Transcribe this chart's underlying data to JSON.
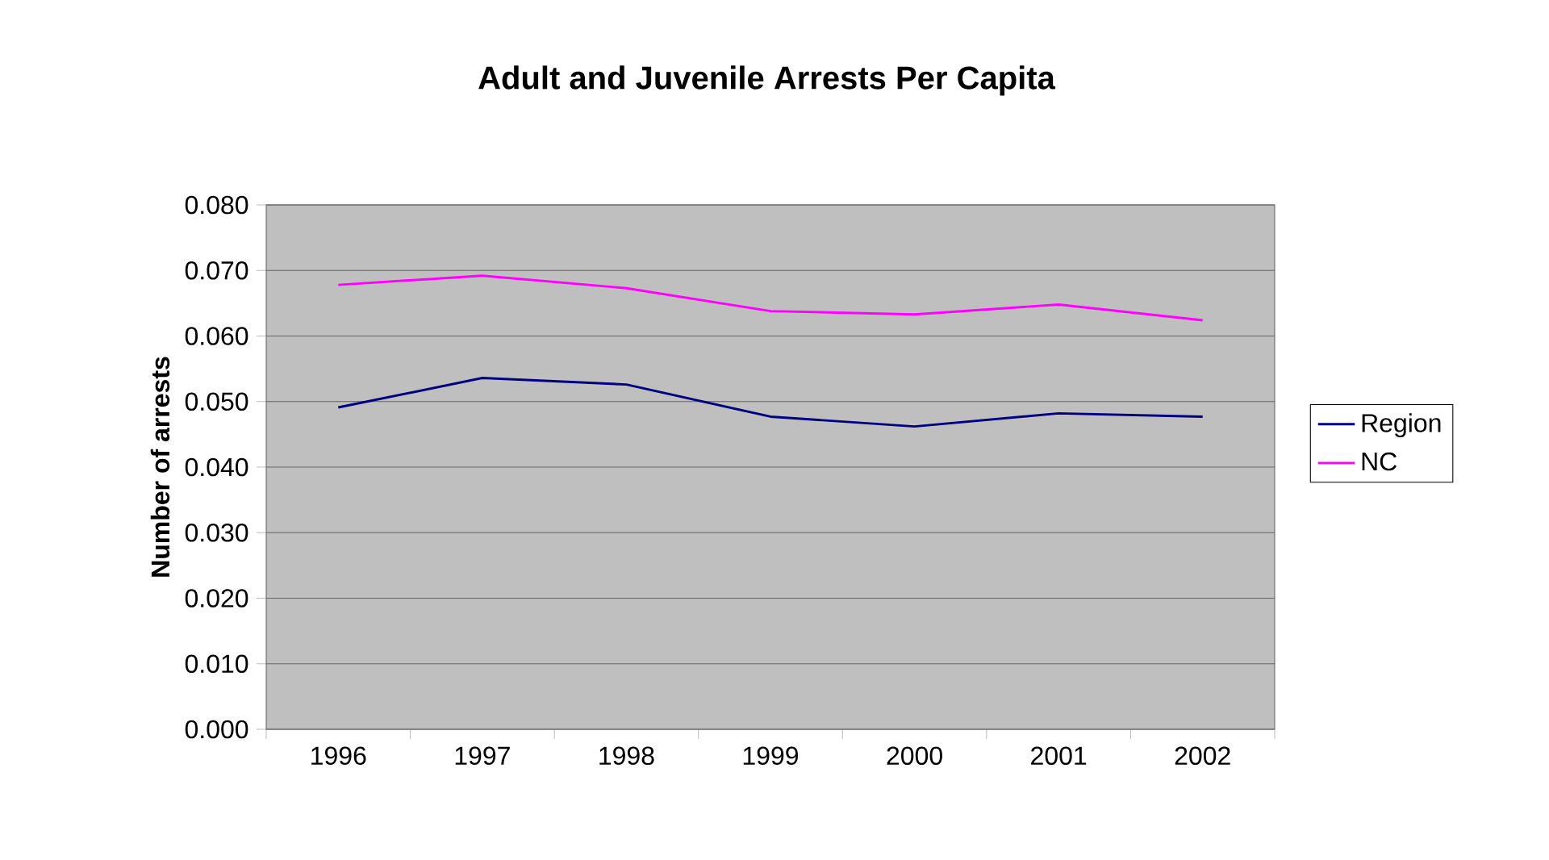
{
  "chart_data": {
    "type": "line",
    "title": "Adult and Juvenile Arrests Per Capita",
    "ylabel": "Number of arrests",
    "categories": [
      "1996",
      "1997",
      "1998",
      "1999",
      "2000",
      "2001",
      "2002"
    ],
    "series": [
      {
        "name": "Region",
        "color": "#000080",
        "values": [
          0.0491,
          0.0536,
          0.0526,
          0.0477,
          0.0462,
          0.0482,
          0.0477
        ]
      },
      {
        "name": "NC",
        "color": "#ff00ff",
        "values": [
          0.0678,
          0.0692,
          0.0673,
          0.0638,
          0.0633,
          0.0648,
          0.0624
        ]
      }
    ],
    "ylim": [
      0,
      0.08
    ],
    "yticks": [
      {
        "value": 0,
        "label": "0.000"
      },
      {
        "value": 0.01,
        "label": "0.010"
      },
      {
        "value": 0.02,
        "label": "0.020"
      },
      {
        "value": 0.03,
        "label": "0.030"
      },
      {
        "value": 0.04,
        "label": "0.040"
      },
      {
        "value": 0.05,
        "label": "0.050"
      },
      {
        "value": 0.06,
        "label": "0.060"
      },
      {
        "value": 0.07,
        "label": "0.070"
      },
      {
        "value": 0.08,
        "label": "0.080"
      }
    ],
    "grid": "y",
    "legend": "right"
  }
}
